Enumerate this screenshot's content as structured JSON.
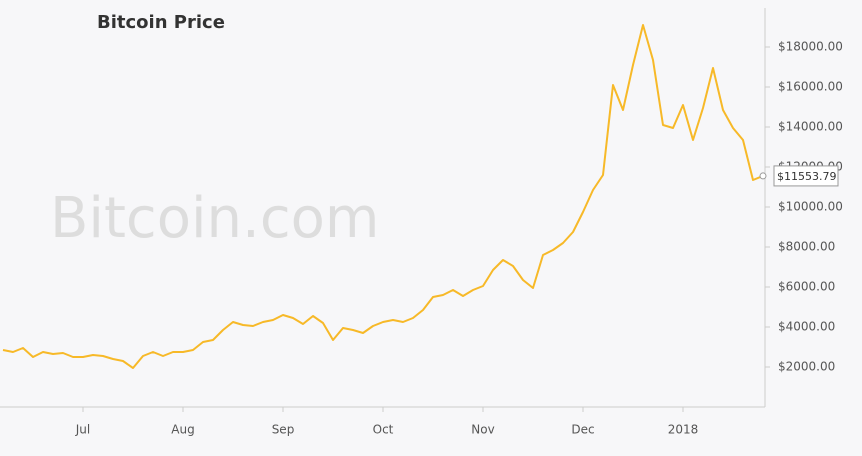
{
  "chart_data": {
    "type": "line",
    "title": "Bitcoin Price",
    "watermark": "Bitcoin.com",
    "categories": [
      null,
      null,
      null,
      null,
      null,
      null,
      null,
      null,
      "Jul",
      null,
      null,
      null,
      null,
      null,
      null,
      null,
      null,
      null,
      "Aug",
      null,
      null,
      null,
      null,
      null,
      null,
      null,
      null,
      null,
      "Sep",
      null,
      null,
      null,
      null,
      null,
      null,
      null,
      null,
      null,
      "Oct",
      null,
      null,
      null,
      null,
      null,
      null,
      null,
      null,
      null,
      "Nov",
      null,
      null,
      null,
      null,
      null,
      null,
      null,
      null,
      null,
      "Dec",
      null,
      null,
      null,
      null,
      null,
      null,
      null,
      null,
      null,
      "2018",
      null,
      null,
      null,
      null,
      null,
      null,
      null,
      null
    ],
    "series": [
      {
        "name": "Bitcoin Price",
        "color": "#f7b928",
        "values": [
          2850,
          2750,
          2950,
          2500,
          2750,
          2650,
          2700,
          2500,
          2500,
          2600,
          2550,
          2400,
          2300,
          1950,
          2550,
          2750,
          2550,
          2750,
          2750,
          2850,
          3250,
          3350,
          3850,
          4250,
          4100,
          4050,
          4250,
          4350,
          4600,
          4450,
          4150,
          4550,
          4200,
          3350,
          3950,
          3850,
          3700,
          4050,
          4250,
          4350,
          4250,
          4450,
          4850,
          5500,
          5600,
          5850,
          5550,
          5850,
          6050,
          6850,
          7350,
          7050,
          6350,
          5950,
          7600,
          7850,
          8200,
          8750,
          9750,
          10850,
          11600,
          16100,
          14850,
          17100,
          19100,
          17350,
          14100,
          13950,
          15100,
          13350,
          14950,
          16950,
          14850,
          13950,
          13350,
          11350,
          11553.79
        ],
        "value_labels": [
          null,
          null,
          null,
          null,
          null,
          null,
          null,
          null,
          null,
          null,
          null,
          null,
          null,
          null,
          null,
          null,
          null,
          null,
          null,
          null,
          null,
          null,
          null,
          null,
          null,
          null,
          null,
          null,
          null,
          null,
          null,
          null,
          null,
          null,
          null,
          null,
          null,
          null,
          null,
          null,
          null,
          null,
          null,
          null,
          null,
          null,
          null,
          null,
          null,
          null,
          null,
          null,
          null,
          null,
          null,
          null,
          null,
          null,
          null,
          null,
          null,
          null,
          null,
          null,
          null,
          null,
          null,
          null,
          null,
          null,
          null,
          null,
          null,
          null,
          null,
          null,
          "$11553.79"
        ]
      }
    ],
    "ylim": [
      0,
      20000
    ],
    "yticks": [
      {
        "value": 2000,
        "label": "$2000.00"
      },
      {
        "value": 4000,
        "label": "$4000.00"
      },
      {
        "value": 6000,
        "label": "$6000.00"
      },
      {
        "value": 8000,
        "label": "$8000.00"
      },
      {
        "value": 10000,
        "label": "$10000.00"
      },
      {
        "value": 12000,
        "label": "$12000.00"
      },
      {
        "value": 14000,
        "label": "$14000.00"
      },
      {
        "value": 16000,
        "label": "$16000.00"
      },
      {
        "value": 18000,
        "label": "$18000.00"
      }
    ],
    "y_axis_side": "right",
    "grid": false
  }
}
